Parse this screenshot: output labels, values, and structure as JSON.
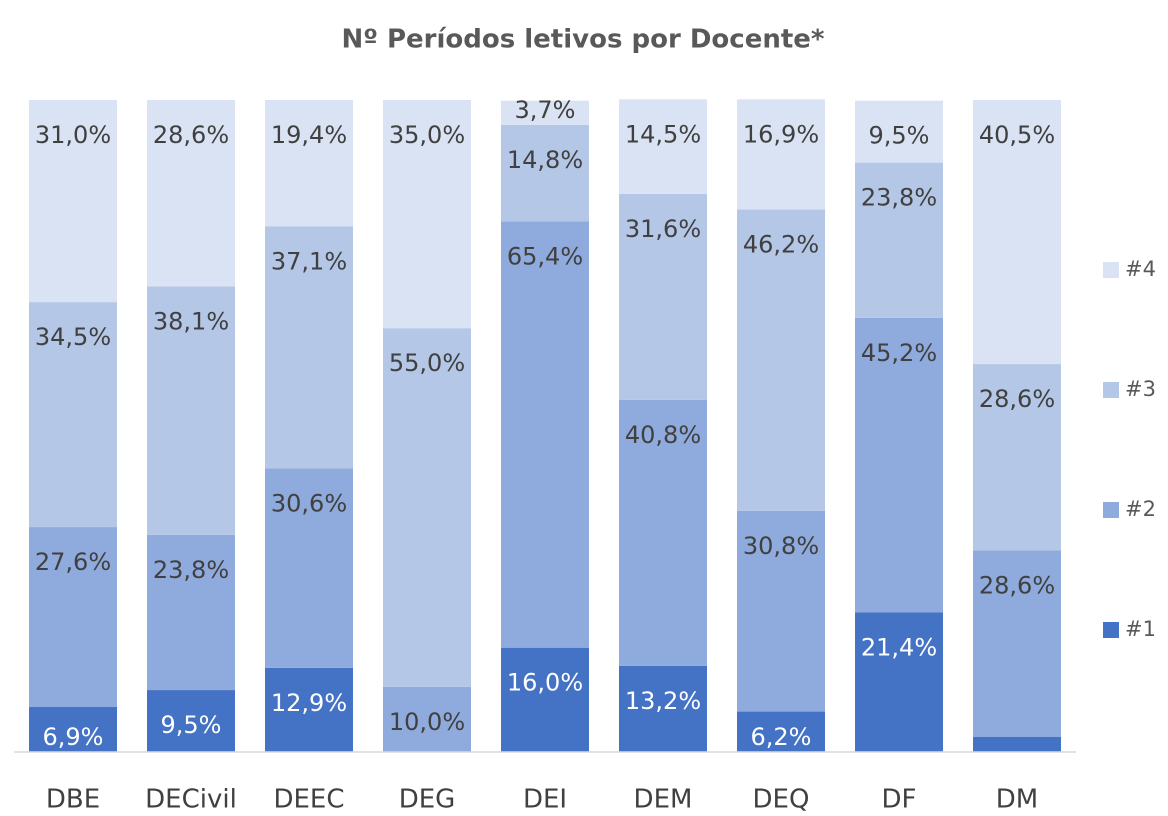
{
  "chart_data": {
    "type": "stacked_bar",
    "title": "Nº Períodos letivos por Docente*",
    "categories": [
      "DBE",
      "DECivil",
      "DEEC",
      "DEG",
      "DEI",
      "DEM",
      "DEQ",
      "DF",
      "DM"
    ],
    "ylim": [
      0,
      100
    ],
    "legend": "right",
    "series": [
      {
        "name": "#1",
        "color": "#4472c4",
        "values": [
          6.9,
          9.5,
          12.9,
          0,
          16.0,
          13.2,
          6.2,
          21.4,
          2.3
        ],
        "value_labels": [
          "6,9%",
          "9,5%",
          "12,9%",
          null,
          "16,0%",
          "13,2%",
          "6,2%",
          "21,4%",
          null
        ]
      },
      {
        "name": "#2",
        "color": "#8faadc",
        "values": [
          27.6,
          23.8,
          30.6,
          10.0,
          65.4,
          40.8,
          30.8,
          45.2,
          28.6
        ],
        "value_labels": [
          "27,6%",
          "23,8%",
          "30,6%",
          "10,0%",
          "65,4%",
          "40,8%",
          "30,8%",
          "45,2%",
          "28,6%"
        ]
      },
      {
        "name": "#3",
        "color": "#b4c7e7",
        "values": [
          34.5,
          38.1,
          37.1,
          55.0,
          14.8,
          31.6,
          46.2,
          23.8,
          28.6
        ],
        "value_labels": [
          "34,5%",
          "38,1%",
          "37,1%",
          "55,0%",
          "14,8%",
          "31,6%",
          "46,2%",
          "23,8%",
          "28,6%"
        ]
      },
      {
        "name": "#4",
        "color": "#dae3f3",
        "values": [
          31.0,
          28.6,
          19.4,
          35.0,
          3.7,
          14.5,
          16.9,
          9.5,
          40.5
        ],
        "value_labels": [
          "31,0%",
          "28,6%",
          "19,4%",
          "35,0%",
          "3,7%",
          "14,5%",
          "16,9%",
          "9,5%",
          "40,5%"
        ]
      }
    ]
  }
}
